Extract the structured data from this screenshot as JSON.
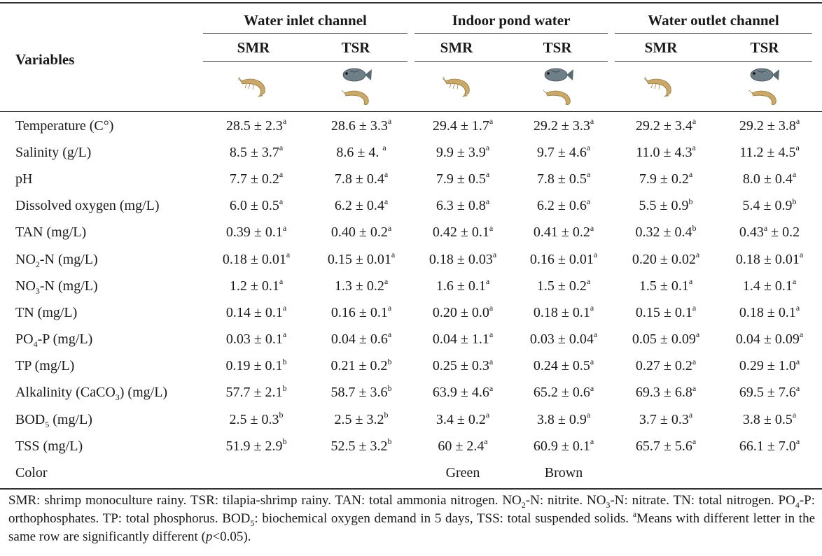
{
  "table": {
    "variables_header": "Variables",
    "groups": [
      "Water inlet channel",
      "Indoor pond water",
      "Water outlet channel"
    ],
    "subheaders": [
      "SMR",
      "TSR",
      "SMR",
      "TSR",
      "SMR",
      "TSR"
    ],
    "icons": [
      "shrimp-icon",
      "tilapia-shrimp-icon",
      "shrimp-icon",
      "tilapia-shrimp-icon",
      "shrimp-icon",
      "tilapia-shrimp-icon"
    ],
    "rows": [
      {
        "label": "Temperature (C°)",
        "values": [
          [
            "28.5 ± 2.3",
            "a"
          ],
          [
            "28.6 ± 3.3",
            "a"
          ],
          [
            "29.4 ± 1.7",
            "a"
          ],
          [
            "29.2 ± 3.3",
            "a"
          ],
          [
            "29.2 ± 3.4",
            "a"
          ],
          [
            "29.2 ± 3.8",
            "a"
          ]
        ]
      },
      {
        "label": "Salinity (g/L)",
        "values": [
          [
            "8.5 ± 3.7",
            "a"
          ],
          [
            "8.6 ± 4. ",
            "a"
          ],
          [
            "9.9 ± 3.9",
            "a"
          ],
          [
            "9.7 ± 4.6",
            "a"
          ],
          [
            "11.0 ± 4.3",
            "a"
          ],
          [
            "11.2 ± 4.5",
            "a"
          ]
        ]
      },
      {
        "label": "pH",
        "values": [
          [
            "7.7 ± 0.2",
            "a"
          ],
          [
            "7.8 ± 0.4",
            "a"
          ],
          [
            "7.9 ± 0.5",
            "a"
          ],
          [
            "7.8 ± 0.5",
            "a"
          ],
          [
            "7.9 ± 0.2",
            "a"
          ],
          [
            "8.0 ± 0.4",
            "a"
          ]
        ]
      },
      {
        "label": "Dissolved oxygen (mg/L)",
        "values": [
          [
            "6.0 ± 0.5",
            "a"
          ],
          [
            "6.2 ± 0.4",
            "a"
          ],
          [
            "6.3 ± 0.8",
            "a"
          ],
          [
            "6.2 ± 0.6",
            "a"
          ],
          [
            "5.5 ± 0.9",
            "b"
          ],
          [
            "5.4 ± 0.9",
            "b"
          ]
        ]
      },
      {
        "label": "TAN (mg/L)",
        "values": [
          [
            "0.39 ± 0.1",
            "a"
          ],
          [
            "0.40 ± 0.2",
            "a"
          ],
          [
            "0.42 ± 0.1",
            "a"
          ],
          [
            "0.41 ± 0.2",
            "a"
          ],
          [
            "0.32 ± 0.4",
            "b"
          ],
          [
            "0.43",
            "a",
            " ± 0.2"
          ]
        ]
      },
      {
        "label": "NO",
        "label_sub": "2",
        "label_rest": "-N (mg/L)",
        "values": [
          [
            "0.18 ± 0.01",
            "a"
          ],
          [
            "0.15 ± 0.01",
            "a"
          ],
          [
            "0.18 ± 0.03",
            "a"
          ],
          [
            "0.16 ± 0.01",
            "a"
          ],
          [
            "0.20 ± 0.02",
            "a"
          ],
          [
            "0.18 ± 0.01",
            "a"
          ]
        ]
      },
      {
        "label": "NO",
        "label_sub": "3",
        "label_rest": "-N (mg/L)",
        "values": [
          [
            "1.2 ± 0.1",
            "a"
          ],
          [
            "1.3 ± 0.2",
            "a"
          ],
          [
            "1.6 ± 0.1",
            "a"
          ],
          [
            "1.5 ± 0.2",
            "a"
          ],
          [
            "1.5 ± 0.1",
            "a"
          ],
          [
            "1.4 ± 0.1",
            "a"
          ]
        ]
      },
      {
        "label": "TN (mg/L)",
        "values": [
          [
            "0.14 ± 0.1",
            "a"
          ],
          [
            "0.16 ± 0.1",
            "a"
          ],
          [
            "0.20 ± 0.0",
            "a"
          ],
          [
            "0.18 ± 0.1",
            "a"
          ],
          [
            "0.15 ± 0.1",
            "a"
          ],
          [
            "0.18 ± 0.1",
            "a"
          ]
        ]
      },
      {
        "label": "PO",
        "label_sub": "4",
        "label_rest": "-P (mg/L)",
        "values": [
          [
            "0.03 ± 0.1",
            "a"
          ],
          [
            "0.04 ± 0.6",
            "a"
          ],
          [
            "0.04 ± 1.1",
            "a"
          ],
          [
            "0.03 ± 0.04",
            "a"
          ],
          [
            "0.05 ± 0.09",
            "a"
          ],
          [
            "0.04 ± 0.09",
            "a"
          ]
        ]
      },
      {
        "label": "TP (mg/L)",
        "values": [
          [
            "0.19 ± 0.1",
            "b"
          ],
          [
            "0.21 ± 0.2",
            "b"
          ],
          [
            "0.25 ± 0.3",
            "a"
          ],
          [
            "0.24 ± 0.5",
            "a"
          ],
          [
            "0.27 ± 0.2",
            "a"
          ],
          [
            "0.29 ± 1.0",
            "a"
          ]
        ]
      },
      {
        "label": "Alkalinity (CaCO",
        "label_sub": "3",
        "label_rest": ") (mg/L)",
        "values": [
          [
            "57.7 ± 2.1",
            "b"
          ],
          [
            "58.7 ± 3.6",
            "b"
          ],
          [
            "63.9 ± 4.6",
            "a"
          ],
          [
            "65.2 ± 0.6",
            "a"
          ],
          [
            "69.3 ± 6.8",
            "a"
          ],
          [
            "69.5 ± 7.6",
            "a"
          ]
        ]
      },
      {
        "label": "BOD",
        "label_sub": "5",
        "label_rest": " (mg/L)",
        "values": [
          [
            "2.5 ± 0.3",
            "b"
          ],
          [
            "2.5 ± 3.2",
            "b"
          ],
          [
            "3.4 ± 0.2",
            "a"
          ],
          [
            "3.8 ± 0.9",
            "a"
          ],
          [
            "3.7 ± 0.3",
            "a"
          ],
          [
            "3.8 ± 0.5",
            "a"
          ]
        ]
      },
      {
        "label": "TSS (mg/L)",
        "values": [
          [
            "51.9 ± 2.9",
            "b"
          ],
          [
            "52.5 ± 3.2",
            "b"
          ],
          [
            "60 ± 2.4",
            "a"
          ],
          [
            "60.9 ± 0.1",
            "a"
          ],
          [
            "65.7 ± 5.6",
            "a"
          ],
          [
            "66.1 ± 7.0",
            "a"
          ]
        ]
      },
      {
        "label": "Color",
        "values": [
          [
            "",
            ""
          ],
          [
            "",
            ""
          ],
          [
            "Green",
            ""
          ],
          [
            "Brown",
            ""
          ],
          [
            "",
            ""
          ],
          [
            "",
            ""
          ]
        ]
      }
    ]
  },
  "footnote": {
    "p1": "SMR: shrimp monoculture rainy. TSR: tilapia-shrimp rainy. TAN: total ammonia nitrogen. NO",
    "s1": "2",
    "p2": "-N: nitrite. NO",
    "s2": "3",
    "p3": "-N: nitrate. TN: total nitrogen. PO",
    "s3": "4",
    "p4": "-P: orthophosphates. TP: total phosphorus. BOD",
    "s4": "5",
    "p5": ": biochemical oxygen demand in 5 days, TSS: total suspended solids. ",
    "sup": "a",
    "p6": "Means with different letter in the same row are significantly different (",
    "p_italic": "p",
    "p7": "<0.05)."
  },
  "colors": {
    "rule": "#333333",
    "shrimp_body": "#c9a86a",
    "fish_body": "#6f7f88"
  }
}
